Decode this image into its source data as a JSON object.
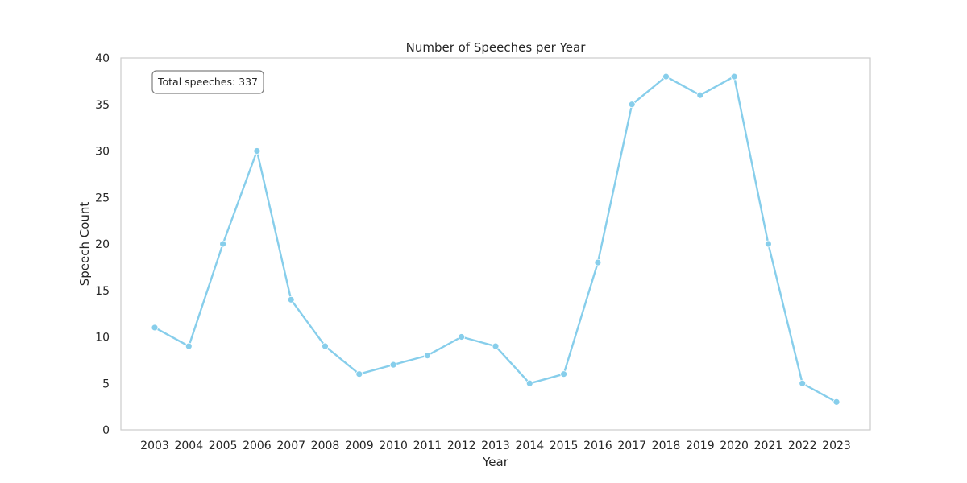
{
  "chart_data": {
    "type": "line",
    "title": "Number of Speeches per Year",
    "xlabel": "Year",
    "ylabel": "Speech Count",
    "x": [
      "2003",
      "2004",
      "2005",
      "2006",
      "2007",
      "2008",
      "2009",
      "2010",
      "2011",
      "2012",
      "2013",
      "2014",
      "2015",
      "2016",
      "2017",
      "2018",
      "2019",
      "2020",
      "2021",
      "2022",
      "2023"
    ],
    "series": [
      {
        "values": [
          11,
          9,
          20,
          30,
          14,
          9,
          6,
          7,
          8,
          10,
          9,
          5,
          6,
          18,
          35,
          38,
          36,
          38,
          20,
          5,
          3
        ],
        "color": "#87CEEB"
      }
    ],
    "ylim": [
      0,
      40
    ],
    "yticks": [
      0,
      5,
      10,
      15,
      20,
      25,
      30,
      35,
      40
    ],
    "grid": false,
    "annotation": "Total speeches: 337"
  }
}
